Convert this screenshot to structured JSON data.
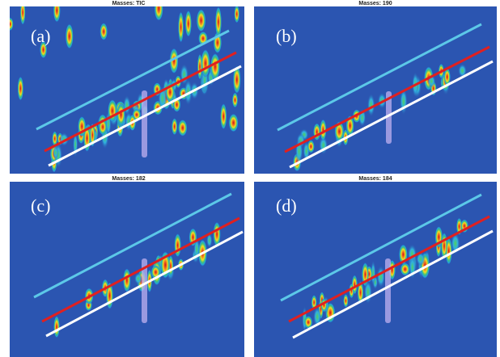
{
  "panels": [
    {
      "title": "Masses: TIC",
      "label": "(a)"
    },
    {
      "title": "Masses: 190",
      "label": "(b)"
    },
    {
      "title": "Masses: 182",
      "label": "(c)"
    },
    {
      "title": "Masses: 184",
      "label": "(d)"
    }
  ]
}
